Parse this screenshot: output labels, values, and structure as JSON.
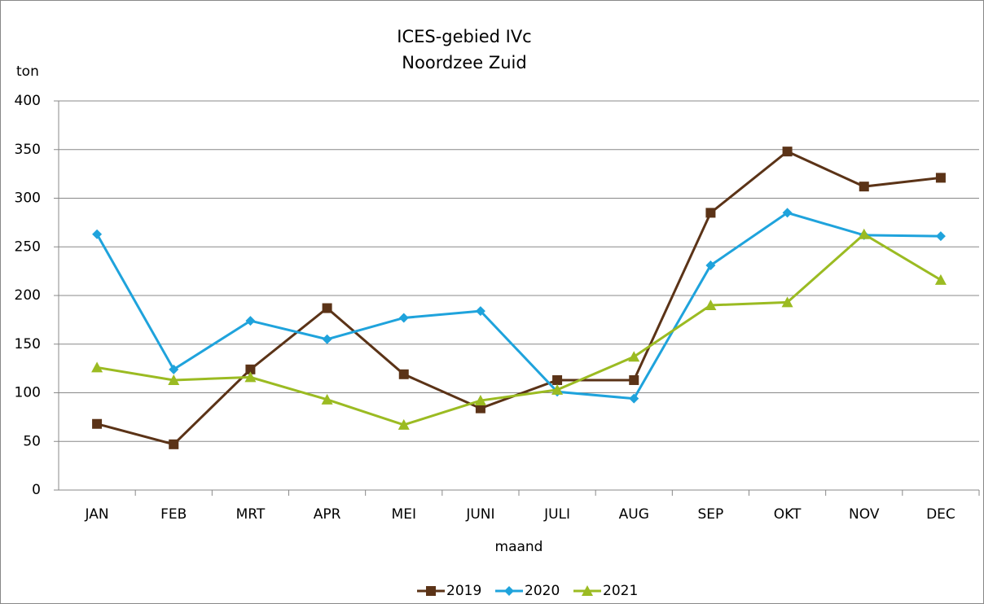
{
  "chart_data": {
    "type": "line",
    "title": "ICES-gebied IVc",
    "subtitle": "Noordzee Zuid",
    "y_label": "ton",
    "x_label": "maand",
    "categories": [
      "JAN",
      "FEB",
      "MRT",
      "APR",
      "MEI",
      "JUNI",
      "JULI",
      "AUG",
      "SEP",
      "OKT",
      "NOV",
      "DEC"
    ],
    "series": [
      {
        "name": "2019",
        "color": "#5b3317",
        "marker": "square",
        "values": [
          68,
          47,
          124,
          187,
          119,
          84,
          113,
          113,
          285,
          348,
          312,
          321
        ]
      },
      {
        "name": "2020",
        "color": "#1fa3dc",
        "marker": "diamond",
        "values": [
          263,
          124,
          174,
          155,
          177,
          184,
          101,
          94,
          231,
          285,
          262,
          261
        ]
      },
      {
        "name": "2021",
        "color": "#9bbb22",
        "marker": "triangle",
        "values": [
          126,
          113,
          116,
          93,
          67,
          92,
          103,
          137,
          190,
          193,
          263,
          216
        ]
      }
    ],
    "ylim": [
      0,
      400
    ],
    "yticks": [
      0,
      50,
      100,
      150,
      200,
      250,
      300,
      350,
      400
    ],
    "grid": true,
    "legend": "bottom"
  }
}
